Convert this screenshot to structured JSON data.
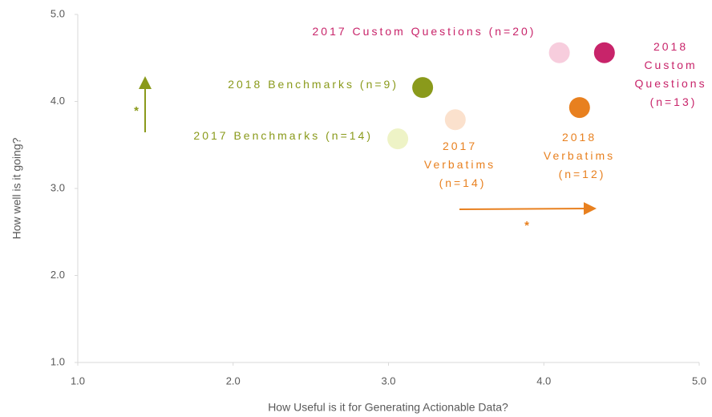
{
  "chart_data": {
    "type": "scatter",
    "x_label": "How Useful is it for Generating Actionable Data?",
    "y_label": "How well is it going?",
    "xlim": [
      1,
      5
    ],
    "ylim": [
      1,
      5
    ],
    "xticks": [
      {
        "value": 1,
        "label": "1.0"
      },
      {
        "value": 2,
        "label": "2.0"
      },
      {
        "value": 3,
        "label": "3.0"
      },
      {
        "value": 4,
        "label": "4.0"
      },
      {
        "value": 5,
        "label": "5.0"
      }
    ],
    "yticks": [
      {
        "value": 1,
        "label": "1.0"
      },
      {
        "value": 2,
        "label": "2.0"
      },
      {
        "value": 3,
        "label": "3.0"
      },
      {
        "value": 4,
        "label": "4.0"
      },
      {
        "value": 5,
        "label": "5.0"
      }
    ],
    "series": [
      {
        "name": "2017 Benchmarks (n=14)",
        "color": "#eef3c6",
        "label_color": "#8a9a1b",
        "x": [
          3.06
        ],
        "values": [
          3.57
        ]
      },
      {
        "name": "2018 Benchmarks (n=9)",
        "color": "#8a9a1b",
        "label_color": "#8a9a1b",
        "x": [
          3.22
        ],
        "values": [
          4.16
        ]
      },
      {
        "name": "2017 Verbatims (n=14)",
        "color": "#fbe1cd",
        "label_color": "#e8801f",
        "x": [
          3.43
        ],
        "values": [
          3.79
        ]
      },
      {
        "name": "2018 Verbatims (n=12)",
        "color": "#e8801f",
        "label_color": "#e8801f",
        "x": [
          4.23
        ],
        "values": [
          3.93
        ]
      },
      {
        "name": "2017 Custom Questions (n=20)",
        "color": "#f7cddd",
        "label_color": "#c8246a",
        "x": [
          4.1
        ],
        "values": [
          4.56
        ]
      },
      {
        "name": "2018 Custom Questions (n=13)",
        "color": "#c8246a",
        "label_color": "#c8246a",
        "x": [
          4.39
        ],
        "values": [
          4.56
        ]
      }
    ],
    "annotations": [
      "*",
      "*"
    ]
  }
}
